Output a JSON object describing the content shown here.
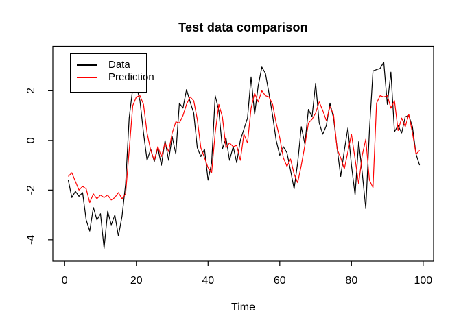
{
  "window": {
    "background": "#ffffff"
  },
  "chart_data": {
    "type": "line",
    "title": "Test data comparison",
    "xlabel": "Time",
    "ylabel": "",
    "x_start": 1,
    "xlim": [
      -3.3,
      102.9
    ],
    "ylim": [
      -4.86,
      3.79
    ],
    "xticks": [
      0,
      20,
      40,
      60,
      80,
      100
    ],
    "yticks": [
      2,
      0,
      -2,
      -4
    ],
    "grid": false,
    "legend": {
      "position": "topleft",
      "border": true
    },
    "series": [
      {
        "name": "Data",
        "color": "#000000",
        "values": [
          -1.6,
          -2.3,
          -2.05,
          -2.25,
          -2.1,
          -3.2,
          -3.65,
          -2.7,
          -3.2,
          -2.95,
          -4.35,
          -2.85,
          -3.4,
          -3.0,
          -3.85,
          -3.05,
          -1.75,
          0.9,
          2.1,
          2.2,
          1.6,
          0.3,
          -0.8,
          -0.35,
          -0.85,
          -0.3,
          -1.0,
          0.0,
          -0.8,
          0.15,
          -0.55,
          1.5,
          1.3,
          2.05,
          1.55,
          1.1,
          -0.3,
          -0.65,
          -0.35,
          -1.6,
          -0.9,
          1.8,
          1.2,
          -0.35,
          0.1,
          -0.8,
          -0.25,
          -0.9,
          0.0,
          0.45,
          0.9,
          2.55,
          1.05,
          2.2,
          2.95,
          2.7,
          1.9,
          1.0,
          0.0,
          -0.6,
          -0.25,
          -0.5,
          -1.2,
          -1.95,
          -0.9,
          0.55,
          -0.15,
          1.25,
          0.95,
          2.3,
          0.7,
          0.25,
          0.6,
          1.5,
          0.9,
          -0.3,
          -1.45,
          -0.4,
          0.5,
          -1.0,
          -2.2,
          -0.05,
          -1.3,
          -2.75,
          0.4,
          2.8,
          2.85,
          2.9,
          3.15,
          1.45,
          2.75,
          0.35,
          0.6,
          0.3,
          0.95,
          1.0,
          0.55,
          -0.55,
          -1.0
        ]
      },
      {
        "name": "Prediction",
        "color": "#ff0000",
        "values": [
          -1.45,
          -1.3,
          -1.65,
          -2.0,
          -1.85,
          -1.95,
          -2.5,
          -2.15,
          -2.35,
          -2.2,
          -2.3,
          -2.2,
          -2.4,
          -2.3,
          -2.1,
          -2.35,
          -2.15,
          -0.4,
          1.4,
          1.75,
          1.8,
          1.45,
          0.3,
          -0.4,
          -0.8,
          -0.25,
          -0.65,
          -0.1,
          -0.45,
          0.3,
          0.75,
          0.7,
          1.0,
          1.45,
          1.75,
          1.6,
          0.85,
          -0.3,
          -0.7,
          -1.1,
          -1.3,
          0.3,
          1.45,
          0.95,
          -0.3,
          -0.1,
          -0.25,
          -0.2,
          -0.8,
          0.25,
          -0.1,
          1.3,
          1.9,
          1.55,
          2.0,
          1.8,
          1.75,
          1.45,
          0.7,
          0.1,
          -0.7,
          -1.05,
          -0.75,
          -1.35,
          -1.7,
          -1.0,
          -0.2,
          0.7,
          0.85,
          1.1,
          1.55,
          1.2,
          0.8,
          1.35,
          1.05,
          -0.35,
          -0.7,
          -1.15,
          -0.45,
          0.25,
          -0.75,
          -1.75,
          -0.6,
          0.05,
          -1.6,
          -1.9,
          1.5,
          1.8,
          1.75,
          1.8,
          1.3,
          1.6,
          0.4,
          0.9,
          0.55,
          1.05,
          0.3,
          -0.55,
          -0.4
        ]
      }
    ]
  }
}
